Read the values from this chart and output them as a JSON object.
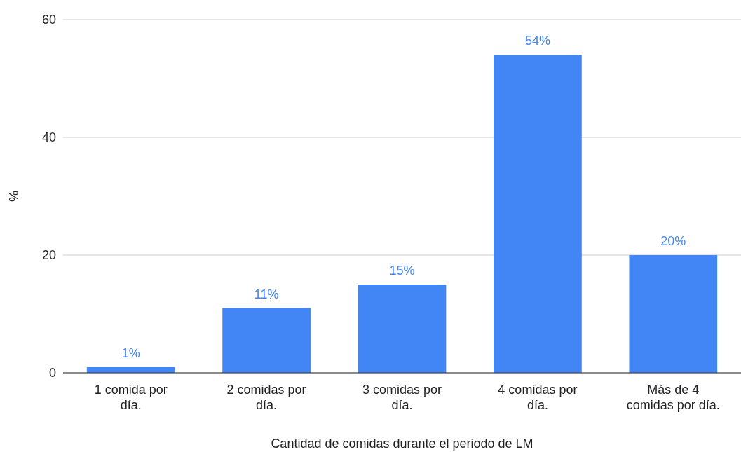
{
  "chart_data": {
    "type": "bar",
    "xlabel": "Cantidad de comidas durante el periodo de LM",
    "ylabel": "%",
    "categories": [
      "1 comida por día.",
      "2 comidas por día.",
      "3 comidas por día.",
      "4 comidas por día.",
      "Más de 4 comidas por día."
    ],
    "values": [
      1,
      11,
      15,
      54,
      20
    ],
    "value_labels": [
      "1%",
      "11%",
      "15%",
      "54%",
      "20%"
    ],
    "color": "#4285f4",
    "ylim": [
      0,
      60
    ],
    "yticks": [
      0,
      20,
      40,
      60
    ],
    "grid": "y"
  }
}
